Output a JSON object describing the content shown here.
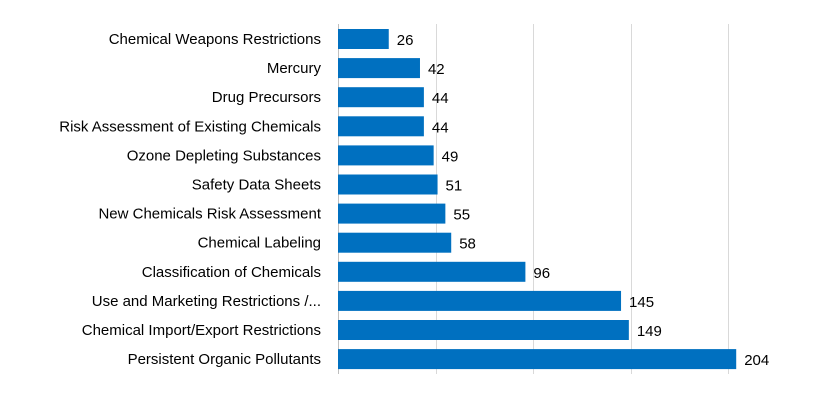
{
  "chart_data": {
    "type": "bar",
    "orientation": "horizontal",
    "categories": [
      "Chemical Weapons Restrictions",
      "Mercury",
      "Drug Precursors",
      "Risk Assessment of Existing Chemicals",
      "Ozone Depleting Substances",
      "Safety Data Sheets",
      "New Chemicals Risk Assessment",
      "Chemical Labeling",
      "Classification of Chemicals",
      "Use and Marketing Restrictions /...",
      "Chemical Import/Export Restrictions",
      "Persistent Organic Pollutants"
    ],
    "values": [
      26,
      42,
      44,
      44,
      49,
      51,
      55,
      58,
      96,
      145,
      149,
      204
    ],
    "xlim": [
      0,
      250
    ],
    "grid": true,
    "bar_color": "#0070c0",
    "data_labels": true
  }
}
